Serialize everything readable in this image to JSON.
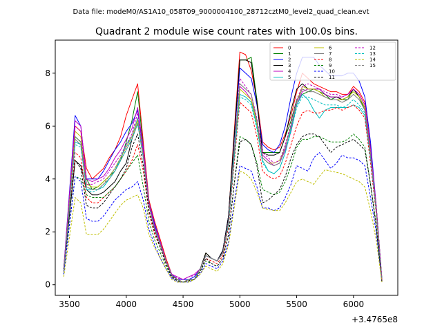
{
  "figure": {
    "suptitle": "Data file: modeM0/AS1A10_058T09_9000004100_28712cztM0_level2_quad_clean.evt"
  },
  "chart_data": {
    "type": "line",
    "title": "Quadrant 2 module wise count rates with 100.0s bins.",
    "xlabel": "",
    "ylabel": "",
    "x_offset_label": "+3.4765e8",
    "xlim": [
      3375,
      6390
    ],
    "ylim": [
      -0.4,
      9.25
    ],
    "xticks": [
      3500,
      4000,
      4500,
      5000,
      5500,
      6000
    ],
    "yticks": [
      0,
      2,
      4,
      6,
      8
    ],
    "grid": false,
    "legend_position": "top-right",
    "x": [
      3450,
      3550,
      3600,
      3650,
      3700,
      3750,
      3800,
      3850,
      3900,
      3950,
      4000,
      4050,
      4100,
      4150,
      4200,
      4250,
      4300,
      4350,
      4400,
      4450,
      4500,
      4550,
      4600,
      4650,
      4700,
      4750,
      4800,
      4850,
      4900,
      4950,
      5000,
      5050,
      5100,
      5150,
      5200,
      5250,
      5300,
      5350,
      5400,
      5450,
      5500,
      5550,
      5600,
      5650,
      5700,
      5750,
      5800,
      5850,
      5900,
      5950,
      6000,
      6050,
      6100,
      6150,
      6200,
      6250
    ],
    "series": [
      {
        "name": "0",
        "color": "#ff0000",
        "dash": false,
        "values": [
          0.6,
          6.0,
          5.8,
          4.4,
          4.0,
          4.2,
          4.4,
          4.8,
          5.1,
          5.6,
          6.4,
          7.0,
          7.6,
          5.4,
          3.2,
          2.4,
          1.7,
          1.0,
          0.4,
          0.2,
          0.1,
          0.2,
          0.2,
          0.6,
          1.2,
          1.0,
          0.9,
          1.3,
          2.6,
          5.8,
          8.8,
          8.7,
          8.1,
          7.0,
          5.4,
          5.2,
          5.1,
          5.2,
          5.7,
          6.4,
          7.3,
          8.0,
          7.8,
          7.6,
          7.5,
          7.4,
          7.3,
          7.3,
          7.2,
          7.2,
          7.5,
          7.3,
          6.9,
          5.2,
          3.0,
          0.2
        ]
      },
      {
        "name": "1",
        "color": "#008000",
        "dash": false,
        "values": [
          0.6,
          5.6,
          5.4,
          4.0,
          3.6,
          3.7,
          3.9,
          4.1,
          4.3,
          4.7,
          5.4,
          6.2,
          7.3,
          5.2,
          3.1,
          2.2,
          1.6,
          0.9,
          0.35,
          0.2,
          0.1,
          0.2,
          0.2,
          0.6,
          1.2,
          1.0,
          0.9,
          1.3,
          2.6,
          5.6,
          8.5,
          8.5,
          8.6,
          7.0,
          5.0,
          5.0,
          5.0,
          5.0,
          5.6,
          6.2,
          7.0,
          7.2,
          7.3,
          7.4,
          7.3,
          7.2,
          7.0,
          7.1,
          7.0,
          7.0,
          7.4,
          7.1,
          6.6,
          5.0,
          3.0,
          0.2
        ]
      },
      {
        "name": "2",
        "color": "#0000ff",
        "dash": false,
        "values": [
          0.6,
          6.4,
          6.0,
          4.0,
          4.0,
          4.0,
          4.3,
          4.7,
          5.1,
          5.4,
          5.8,
          6.1,
          6.6,
          5.1,
          3.1,
          2.3,
          1.6,
          0.9,
          0.4,
          0.2,
          0.2,
          0.2,
          0.3,
          0.6,
          1.1,
          1.0,
          0.9,
          1.3,
          2.6,
          5.5,
          8.2,
          8.0,
          7.8,
          6.8,
          5.3,
          5.1,
          5.0,
          5.3,
          6.0,
          7.1,
          8.0,
          8.6,
          8.6,
          8.6,
          8.3,
          8.1,
          7.9,
          7.9,
          7.9,
          8.0,
          8.0,
          7.7,
          7.1,
          5.4,
          3.0,
          0.2
        ]
      },
      {
        "name": "3",
        "color": "#000000",
        "dash": false,
        "values": [
          0.6,
          4.7,
          4.5,
          3.6,
          3.4,
          3.4,
          3.5,
          3.7,
          3.9,
          4.3,
          4.6,
          5.5,
          6.1,
          4.9,
          3.0,
          2.1,
          1.5,
          0.9,
          0.35,
          0.2,
          0.1,
          0.2,
          0.2,
          0.6,
          1.2,
          1.0,
          0.9,
          1.3,
          2.6,
          5.6,
          8.5,
          8.5,
          8.4,
          6.9,
          5.0,
          4.9,
          4.9,
          5.0,
          5.6,
          6.6,
          7.4,
          7.6,
          7.4,
          7.4,
          7.4,
          7.2,
          7.1,
          7.1,
          7.0,
          7.1,
          7.4,
          7.1,
          6.7,
          5.0,
          2.9,
          0.15
        ]
      },
      {
        "name": "4",
        "color": "#bf00bf",
        "dash": false,
        "values": [
          0.6,
          6.2,
          6.0,
          4.0,
          3.9,
          4.0,
          4.1,
          4.4,
          4.8,
          5.1,
          5.5,
          5.9,
          6.7,
          5.2,
          3.1,
          2.2,
          1.6,
          0.9,
          0.4,
          0.3,
          0.2,
          0.3,
          0.4,
          0.6,
          1.1,
          1.0,
          0.9,
          1.2,
          2.4,
          5.0,
          7.5,
          7.3,
          7.0,
          6.2,
          4.9,
          4.7,
          4.5,
          4.6,
          5.1,
          5.8,
          6.8,
          7.3,
          7.4,
          7.4,
          7.4,
          7.2,
          7.1,
          7.1,
          7.1,
          7.2,
          7.4,
          7.2,
          6.8,
          5.1,
          3.0,
          0.2
        ]
      },
      {
        "name": "5",
        "color": "#00bfbf",
        "dash": false,
        "values": [
          0.5,
          5.4,
          5.3,
          3.6,
          3.6,
          3.6,
          3.7,
          4.0,
          4.3,
          4.8,
          5.3,
          5.6,
          6.3,
          4.9,
          3.0,
          2.1,
          1.5,
          0.9,
          0.35,
          0.2,
          0.1,
          0.2,
          0.2,
          0.6,
          1.1,
          1.0,
          0.9,
          1.2,
          2.3,
          4.8,
          7.2,
          7.1,
          6.9,
          6.0,
          4.7,
          4.3,
          4.2,
          4.4,
          5.0,
          5.9,
          6.8,
          7.2,
          7.0,
          6.6,
          6.3,
          6.6,
          6.7,
          6.7,
          6.7,
          6.7,
          6.8,
          6.7,
          6.4,
          4.8,
          2.8,
          0.2
        ]
      },
      {
        "name": "6",
        "color": "#bfbf00",
        "dash": false,
        "values": [
          0.5,
          5.8,
          5.6,
          3.8,
          3.7,
          3.7,
          3.9,
          4.1,
          4.4,
          4.8,
          5.2,
          5.6,
          6.2,
          4.9,
          3.0,
          2.1,
          1.5,
          0.9,
          0.35,
          0.2,
          0.1,
          0.2,
          0.2,
          0.6,
          1.1,
          1.0,
          0.9,
          1.2,
          2.4,
          5.0,
          7.4,
          7.2,
          7.0,
          6.1,
          4.8,
          4.6,
          4.6,
          4.7,
          5.2,
          6.0,
          6.9,
          7.5,
          7.4,
          7.4,
          7.3,
          7.1,
          7.0,
          7.0,
          7.0,
          7.1,
          7.3,
          7.1,
          6.7,
          5.0,
          2.9,
          0.2
        ]
      },
      {
        "name": "7",
        "color": "#7f7f7f",
        "dash": false,
        "values": [
          0.5,
          5.5,
          5.3,
          3.7,
          3.6,
          3.6,
          3.8,
          4.0,
          4.3,
          4.7,
          5.1,
          5.5,
          6.1,
          4.8,
          3.0,
          2.1,
          1.5,
          0.9,
          0.35,
          0.2,
          0.1,
          0.2,
          0.2,
          0.6,
          1.1,
          1.0,
          0.9,
          1.2,
          2.4,
          5.1,
          7.6,
          7.4,
          7.2,
          6.2,
          4.8,
          4.6,
          4.5,
          4.6,
          5.2,
          6.0,
          6.9,
          7.4,
          7.3,
          7.3,
          7.2,
          7.1,
          7.0,
          7.0,
          6.9,
          7.0,
          7.2,
          7.0,
          6.6,
          4.9,
          2.9,
          0.2
        ]
      },
      {
        "name": "8",
        "color": "#ff0000",
        "dash": true,
        "values": [
          0.5,
          5.0,
          4.8,
          3.3,
          3.1,
          3.1,
          3.3,
          3.5,
          3.7,
          4.0,
          4.3,
          4.7,
          5.3,
          4.3,
          2.7,
          1.9,
          1.4,
          0.8,
          0.3,
          0.2,
          0.1,
          0.2,
          0.2,
          0.5,
          1.0,
          0.9,
          0.8,
          1.1,
          2.2,
          4.6,
          6.9,
          6.7,
          6.5,
          5.6,
          4.3,
          4.1,
          4.0,
          4.1,
          4.6,
          5.3,
          6.0,
          6.5,
          6.6,
          6.5,
          6.5,
          6.6,
          6.6,
          6.7,
          6.6,
          6.7,
          6.8,
          6.6,
          6.3,
          4.6,
          2.7,
          0.15
        ]
      },
      {
        "name": "9",
        "color": "#008000",
        "dash": true,
        "values": [
          0.4,
          4.1,
          4.0,
          3.4,
          3.3,
          3.3,
          3.3,
          3.5,
          3.7,
          4.0,
          4.3,
          4.6,
          4.9,
          3.7,
          2.4,
          1.7,
          1.2,
          0.7,
          0.3,
          0.15,
          0.1,
          0.15,
          0.2,
          0.5,
          0.9,
          0.8,
          0.7,
          1.0,
          1.9,
          3.8,
          5.6,
          5.5,
          5.3,
          4.6,
          3.6,
          3.5,
          3.4,
          3.5,
          3.9,
          4.5,
          5.2,
          5.5,
          5.5,
          5.6,
          5.6,
          5.5,
          5.4,
          5.4,
          5.4,
          5.5,
          5.7,
          5.5,
          5.2,
          3.8,
          2.3,
          0.15
        ]
      },
      {
        "name": "10",
        "color": "#0000ff",
        "dash": true,
        "values": [
          0.4,
          4.1,
          3.9,
          2.5,
          2.4,
          2.4,
          2.6,
          2.9,
          3.2,
          3.4,
          3.6,
          3.7,
          3.9,
          3.2,
          2.1,
          1.5,
          1.0,
          0.6,
          0.25,
          0.1,
          0.1,
          0.1,
          0.2,
          0.4,
          0.8,
          0.7,
          0.6,
          0.9,
          1.6,
          3.1,
          4.5,
          4.4,
          4.3,
          3.7,
          2.9,
          2.9,
          2.8,
          2.9,
          3.3,
          3.8,
          4.5,
          4.4,
          4.3,
          4.8,
          5.0,
          4.7,
          4.4,
          4.6,
          4.9,
          4.8,
          4.8,
          4.7,
          4.5,
          3.3,
          2.0,
          0.1
        ]
      },
      {
        "name": "11",
        "color": "#000000",
        "dash": true,
        "values": [
          0.5,
          4.7,
          4.4,
          3.0,
          2.9,
          2.9,
          3.1,
          3.4,
          3.7,
          4.0,
          4.4,
          5.2,
          5.7,
          4.5,
          2.8,
          2.0,
          1.4,
          0.8,
          0.3,
          0.15,
          0.1,
          0.15,
          0.2,
          0.5,
          1.0,
          0.8,
          0.7,
          1.0,
          1.9,
          3.8,
          5.4,
          5.5,
          5.3,
          4.5,
          3.1,
          3.2,
          3.4,
          3.6,
          4.1,
          4.8,
          5.3,
          5.6,
          5.7,
          5.7,
          5.6,
          5.3,
          5.0,
          5.2,
          5.3,
          5.4,
          5.5,
          5.3,
          5.1,
          3.8,
          2.2,
          0.1
        ]
      },
      {
        "name": "12",
        "color": "#bf00bf",
        "dash": true,
        "values": [
          0.5,
          6.0,
          5.8,
          3.8,
          3.8,
          3.9,
          4.0,
          4.3,
          4.6,
          4.9,
          5.3,
          5.7,
          6.5,
          5.0,
          3.0,
          2.2,
          1.6,
          0.9,
          0.4,
          0.25,
          0.2,
          0.3,
          0.35,
          0.6,
          1.1,
          1.0,
          0.9,
          1.2,
          2.4,
          5.0,
          7.8,
          7.5,
          7.2,
          6.3,
          5.0,
          4.8,
          4.6,
          4.7,
          5.3,
          6.1,
          7.0,
          7.5,
          7.6,
          7.5,
          7.4,
          7.3,
          7.2,
          7.2,
          7.1,
          7.2,
          7.4,
          7.2,
          6.8,
          5.1,
          3.0,
          0.2
        ]
      },
      {
        "name": "13",
        "color": "#00bfbf",
        "dash": true,
        "values": [
          0.5,
          5.3,
          5.2,
          3.6,
          3.5,
          3.6,
          3.7,
          4.0,
          4.3,
          4.7,
          5.1,
          5.5,
          6.1,
          4.8,
          3.0,
          2.1,
          1.5,
          0.9,
          0.35,
          0.2,
          0.1,
          0.2,
          0.2,
          0.6,
          1.1,
          1.0,
          0.9,
          1.2,
          2.3,
          4.8,
          7.1,
          7.0,
          6.8,
          5.9,
          4.6,
          4.3,
          4.2,
          4.4,
          5.0,
          5.8,
          6.7,
          7.1,
          7.1,
          7.0,
          6.9,
          6.8,
          6.8,
          6.8,
          6.7,
          6.8,
          7.0,
          6.8,
          6.5,
          4.8,
          2.8,
          0.2
        ]
      },
      {
        "name": "14",
        "color": "#bfbf00",
        "dash": true,
        "values": [
          0.3,
          3.3,
          3.1,
          1.9,
          1.9,
          1.9,
          2.1,
          2.4,
          2.7,
          3.0,
          3.2,
          3.3,
          3.4,
          2.9,
          1.9,
          1.4,
          1.0,
          0.6,
          0.2,
          0.1,
          0.1,
          0.1,
          0.2,
          0.4,
          0.7,
          0.6,
          0.5,
          0.8,
          1.5,
          2.9,
          4.3,
          4.2,
          4.0,
          3.5,
          2.9,
          2.85,
          2.8,
          2.8,
          3.1,
          3.5,
          3.9,
          4.0,
          3.9,
          3.8,
          4.1,
          4.35,
          4.3,
          4.25,
          4.2,
          4.1,
          4.0,
          3.9,
          3.7,
          2.8,
          1.7,
          0.1
        ]
      },
      {
        "name": "15",
        "color": "#7f7f7f",
        "dash": true,
        "values": [
          0.5,
          5.6,
          5.4,
          3.7,
          3.6,
          3.6,
          3.8,
          4.1,
          4.4,
          4.8,
          5.2,
          5.6,
          6.3,
          4.9,
          3.0,
          2.1,
          1.5,
          0.9,
          0.35,
          0.2,
          0.1,
          0.2,
          0.2,
          0.6,
          1.1,
          1.0,
          0.9,
          1.2,
          2.4,
          5.1,
          7.6,
          7.4,
          7.2,
          6.2,
          4.8,
          4.6,
          4.5,
          4.6,
          5.2,
          6.0,
          6.9,
          7.4,
          7.3,
          7.3,
          7.2,
          7.1,
          7.0,
          7.0,
          6.9,
          7.0,
          7.2,
          7.0,
          6.6,
          4.9,
          2.9,
          0.2
        ]
      }
    ]
  }
}
